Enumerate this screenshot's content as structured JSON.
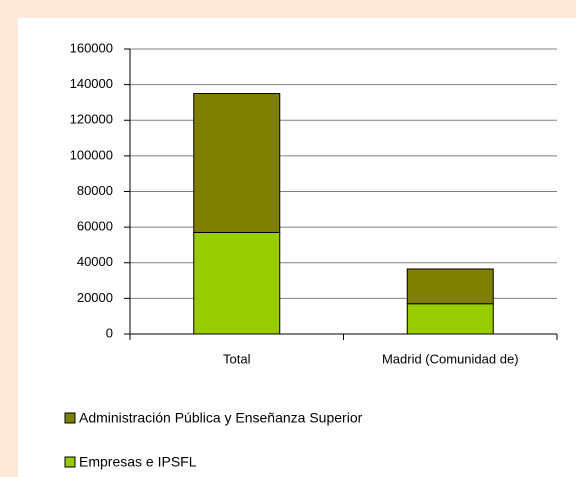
{
  "chart_data": {
    "type": "stacked_bar",
    "categories": [
      "Total",
      "Madrid (Comunidad de)"
    ],
    "series": [
      {
        "name": "Empresas e IPSFL",
        "color": "#99cc00",
        "values": [
          57000,
          17000
        ]
      },
      {
        "name": "Administración Pública y Enseñanza Superior",
        "color": "#808000",
        "values": [
          78000,
          19500
        ]
      }
    ],
    "ylim": [
      0,
      160000
    ],
    "yticks": [
      0,
      20000,
      40000,
      60000,
      80000,
      100000,
      120000,
      140000,
      160000
    ],
    "grid": true
  }
}
